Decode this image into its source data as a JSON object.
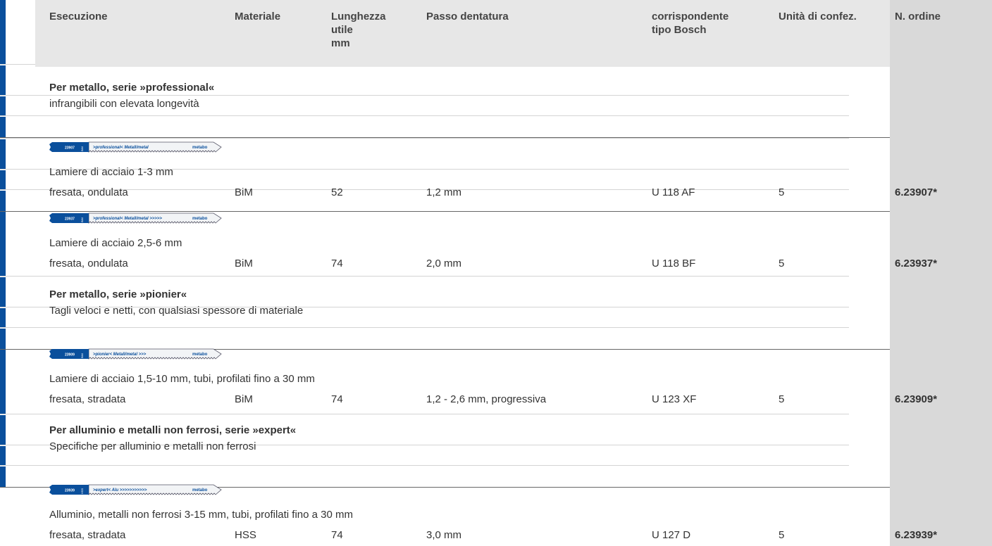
{
  "header": {
    "columns": [
      [
        "Esecuzione"
      ],
      [
        "Materiale"
      ],
      [
        "Lunghezza",
        "utile",
        "mm"
      ],
      [
        "Passo dentatura"
      ],
      [
        "corrispondente",
        "tipo Bosch"
      ],
      [
        "Unità di confez."
      ],
      [
        "N. ordine"
      ]
    ]
  },
  "sections": [
    {
      "title": "Per metallo, serie »professional«",
      "subtitle": "infrangibili con elevata longevità",
      "items": [
        {
          "blade": {
            "code": "23907",
            "material": "BiM",
            "text": ">professional< Metall/metal",
            "brand": "metabo"
          },
          "application": "Lamiere di acciaio 1-3 mm",
          "row": [
            "fresata, ondulata",
            "BiM",
            "52",
            "1,2 mm",
            "U 118 AF",
            "5",
            "6.23907*"
          ]
        },
        {
          "blade": {
            "code": "23937",
            "material": "BiM",
            "text": ">professional< Metall/metal >>>>>",
            "brand": "metabo"
          },
          "application": "Lamiere di acciaio 2,5-6 mm",
          "row": [
            "fresata, ondulata",
            "BiM",
            "74",
            "2,0 mm",
            "U 118 BF",
            "5",
            "6.23937*"
          ]
        }
      ]
    },
    {
      "title": "Per metallo, serie »pionier«",
      "subtitle": "Tagli veloci e netti, con qualsiasi spessore di materiale",
      "items": [
        {
          "blade": {
            "code": "23909",
            "material": "BiM",
            "text": ">pionier< Metall/metal >>>",
            "brand": "metabo"
          },
          "application": "Lamiere di acciaio 1,5-10 mm, tubi, profilati fino a 30 mm",
          "row": [
            "fresata, stradata",
            "BiM",
            "74",
            "1,2 - 2,6 mm, progressiva",
            "U 123 XF",
            "5",
            "6.23909*"
          ]
        }
      ]
    },
    {
      "title": "Per alluminio e metalli non ferrosi, serie »expert«",
      "subtitle": "Specifiche per alluminio e metalli non ferrosi",
      "items": [
        {
          "blade": {
            "code": "23939",
            "material": "HSS",
            "text": ">expert< Alu >>>>>>>>>>>",
            "brand": "metabo"
          },
          "application": "Alluminio, metalli non ferrosi 3-15 mm, tubi, profilati fino a 30 mm",
          "row": [
            "fresata, stradata",
            "HSS",
            "74",
            "3,0 mm",
            "U 127 D",
            "5",
            "6.23939*"
          ]
        }
      ]
    }
  ]
}
